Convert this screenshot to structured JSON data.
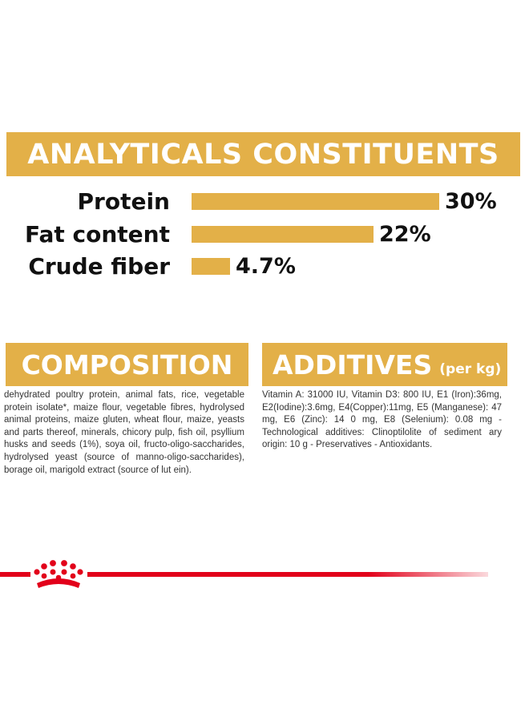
{
  "analytics": {
    "title": "ANALYTICALS CONSTITUENTS",
    "items": [
      {
        "label": "Protein",
        "value_text": "30%",
        "value": 30
      },
      {
        "label": "Fat content",
        "value_text": "22%",
        "value": 22
      },
      {
        "label": "Crude fiber",
        "value_text": "4.7%",
        "value": 4.7
      }
    ]
  },
  "composition": {
    "title": "COMPOSITION",
    "text": "dehydrated poultry protein, animal fats, rice, vegetable protein isolate*, maize flour, vegetable fibres, hydrolysed animal proteins, maize gluten, wheat flour, maize, yeasts and parts thereof, minerals, chicory pulp, fish oil, psyllium husks and seeds (1%), soya oil, fructo-oligo-saccharides, hydrolysed yeast (source of manno-oligo-saccharides), borage oil, marigold extract (source of lut ein)."
  },
  "additives": {
    "title": "ADDITIVES",
    "title_suffix": "(per kg)",
    "text": "Vitamin A: 31000 IU, Vitamin D3: 800 IU, E1 (Iron):36mg, E2(Iodine):3.6mg, E4(Copper):11mg, E5 (Manganese): 47 mg, E6 (Zinc): 14 0 mg, E8 (Selenium): 0.08 mg -Technological additives: Clinoptilolite of sediment ary origin: 10 g - Preservatives - Antioxidants."
  },
  "colors": {
    "banner": "#e3b048",
    "brand_red": "#e2001a"
  },
  "footer": {
    "logo_icon": "crown-logo-icon"
  }
}
